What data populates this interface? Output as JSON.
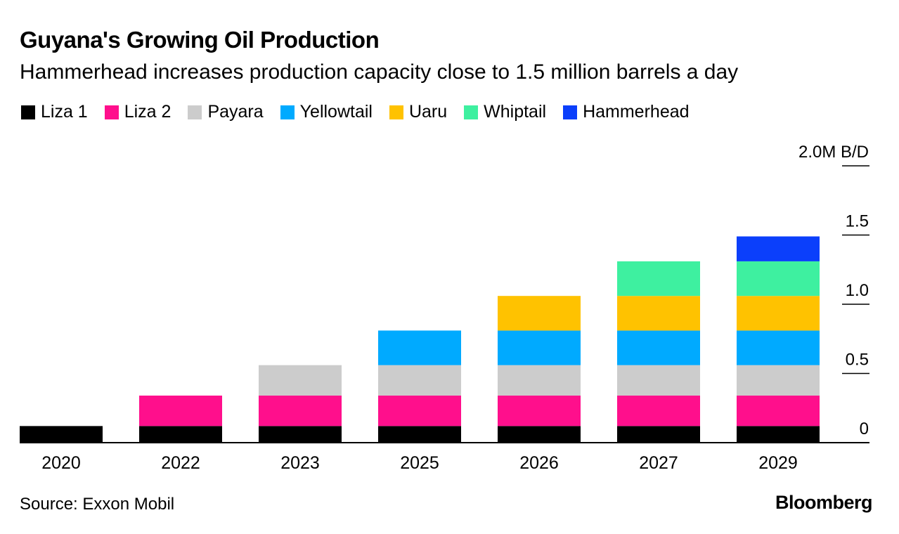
{
  "chart_data": {
    "type": "bar",
    "stacked": true,
    "title": "Guyana's Growing Oil Production",
    "subtitle": "Hammerhead increases production capacity close to 1.5 million barrels a day",
    "categories": [
      "2020",
      "2022",
      "2023",
      "2025",
      "2026",
      "2027",
      "2029"
    ],
    "series": [
      {
        "name": "Liza 1",
        "color": "#000000",
        "values": [
          0.12,
          0.12,
          0.12,
          0.12,
          0.12,
          0.12,
          0.12
        ]
      },
      {
        "name": "Liza 2",
        "color": "#ff0f8c",
        "values": [
          0,
          0.22,
          0.22,
          0.22,
          0.22,
          0.22,
          0.22
        ]
      },
      {
        "name": "Payara",
        "color": "#cccccc",
        "values": [
          0,
          0,
          0.22,
          0.22,
          0.22,
          0.22,
          0.22
        ]
      },
      {
        "name": "Yellowtail",
        "color": "#00aaff",
        "values": [
          0,
          0,
          0,
          0.25,
          0.25,
          0.25,
          0.25
        ]
      },
      {
        "name": "Uaru",
        "color": "#ffc200",
        "values": [
          0,
          0,
          0,
          0,
          0.25,
          0.25,
          0.25
        ]
      },
      {
        "name": "Whiptail",
        "color": "#3ef0a0",
        "values": [
          0,
          0,
          0,
          0,
          0,
          0.25,
          0.25
        ]
      },
      {
        "name": "Hammerhead",
        "color": "#0b3ffb",
        "values": [
          0,
          0,
          0,
          0,
          0,
          0,
          0.18
        ]
      }
    ],
    "y_ticks": [
      {
        "value": 0,
        "label": "0"
      },
      {
        "value": 0.5,
        "label": "0.5"
      },
      {
        "value": 1.0,
        "label": "1.0"
      },
      {
        "value": 1.5,
        "label": "1.5"
      },
      {
        "value": 2.0,
        "label": "2.0M B/D"
      }
    ],
    "ylim": [
      0,
      2.0
    ],
    "legend_position": "top-left",
    "grid": false
  },
  "footer": {
    "source": "Source: Exxon Mobil",
    "brand": "Bloomberg"
  }
}
